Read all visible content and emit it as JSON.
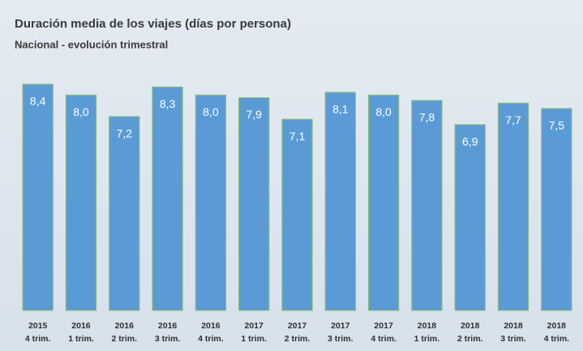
{
  "chart_data": {
    "type": "bar",
    "title": "Duración media de los viajes (días por persona)",
    "subtitle": "Nacional - evolución trimestral",
    "categories": [
      [
        "2015",
        "4 trim."
      ],
      [
        "2016",
        "1 trim."
      ],
      [
        "2016",
        "2 trim."
      ],
      [
        "2016",
        "3 trim."
      ],
      [
        "2016",
        "4 trim."
      ],
      [
        "2017",
        "1 trim."
      ],
      [
        "2017",
        "2 trim."
      ],
      [
        "2017",
        "3 trim."
      ],
      [
        "2017",
        "4 trim."
      ],
      [
        "2018",
        "1 trim."
      ],
      [
        "2018",
        "2 trim."
      ],
      [
        "2018",
        "3 trim."
      ],
      [
        "2018",
        "4 trim."
      ]
    ],
    "values": [
      8.4,
      8.0,
      7.2,
      8.3,
      8.0,
      7.9,
      7.1,
      8.1,
      8.0,
      7.8,
      6.9,
      7.7,
      7.5
    ],
    "value_labels": [
      "8,4",
      "8,0",
      "7,2",
      "8,3",
      "8,0",
      "7,9",
      "7,1",
      "8,1",
      "8,0",
      "7,8",
      "6,9",
      "7,7",
      "7,5"
    ],
    "color": "#5b9bd5",
    "ylim": [
      0,
      9
    ]
  }
}
